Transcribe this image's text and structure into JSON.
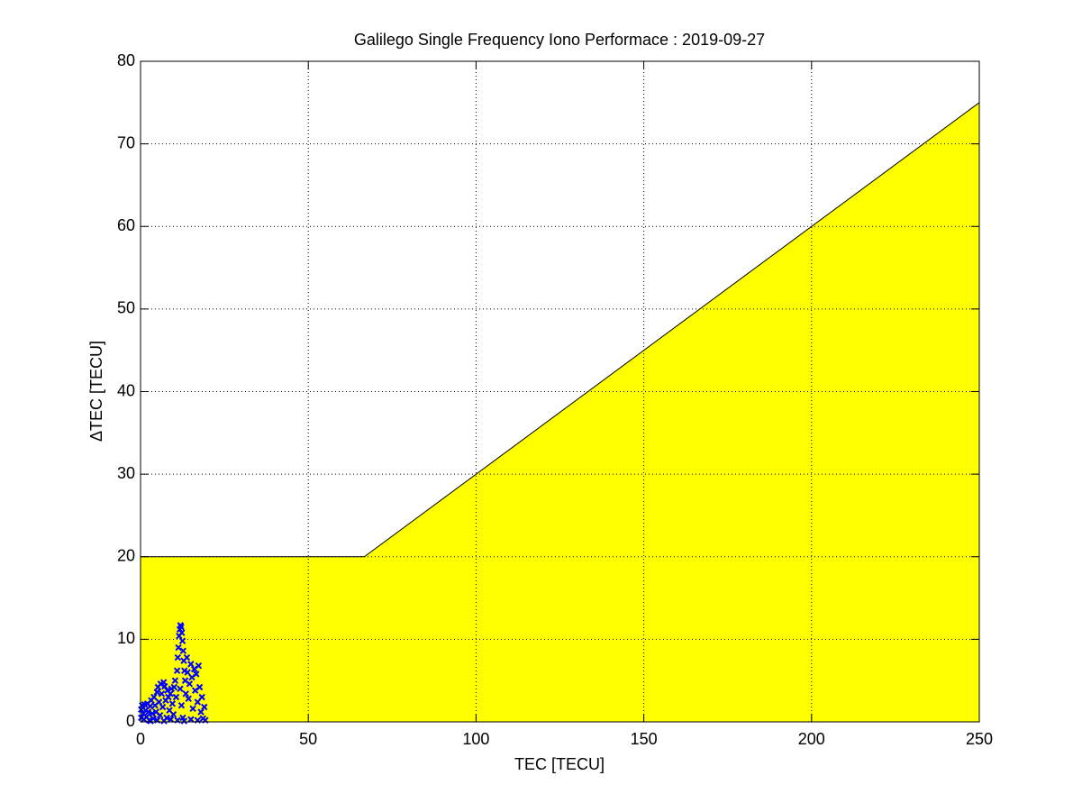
{
  "chart_data": {
    "type": "scatter",
    "title": "Galilego Single Frequency Iono Performace : 2019-09-27",
    "xlabel": "TEC [TECU]",
    "ylabel": "ΔTEC [TECU]",
    "xlim": [
      0,
      250
    ],
    "ylim": [
      0,
      80
    ],
    "xticks": [
      0,
      50,
      100,
      150,
      200,
      250
    ],
    "yticks": [
      0,
      10,
      20,
      30,
      40,
      50,
      60,
      70,
      80
    ],
    "grid": true,
    "area": {
      "color": "#ffff00",
      "x": [
        0,
        66.7,
        250
      ],
      "y": [
        20,
        20,
        75
      ]
    },
    "points": {
      "color": "#0000ff",
      "x": [
        0.2,
        0.2,
        0.5,
        0.8,
        1.0,
        1.2,
        1.5,
        1.8,
        2.0,
        2.3,
        2.6,
        2.9,
        3.2,
        3.5,
        3.8,
        4.0,
        4.3,
        4.6,
        4.9,
        5.2,
        5.5,
        5.8,
        6.0,
        6.3,
        6.6,
        6.9,
        7.2,
        7.5,
        7.8,
        8.0,
        8.3,
        8.6,
        8.9,
        9.2,
        9.5,
        9.8,
        10.0,
        10.3,
        10.6,
        10.9,
        11.1,
        11.3,
        11.5,
        11.7,
        11.9,
        12.1,
        12.3,
        12.5,
        12.7,
        12.9,
        13.1,
        13.3,
        11.8,
        12.2,
        12.6,
        13.5,
        13.8,
        14.0,
        14.3,
        14.6,
        15.0,
        15.3,
        15.6,
        16.0,
        16.3,
        16.6,
        17.0,
        17.3,
        17.6,
        18.0,
        18.3,
        18.6,
        19.0,
        19.3,
        5.0,
        7.0,
        9.0,
        11.0,
        13.0,
        15.0,
        17.0,
        3.0
      ],
      "y": [
        0.5,
        1.5,
        2.0,
        1.0,
        0.3,
        2.1,
        1.4,
        0.6,
        2.2,
        1.2,
        0.2,
        1.9,
        2.6,
        1.0,
        0.4,
        3.0,
        2.0,
        1.2,
        3.6,
        4.2,
        2.4,
        0.8,
        4.6,
        3.4,
        1.8,
        4.8,
        4.3,
        2.6,
        0.5,
        3.8,
        3.0,
        1.4,
        3.4,
        4.0,
        2.2,
        0.9,
        4.2,
        5.0,
        3.0,
        6.2,
        7.8,
        9.0,
        10.4,
        11.2,
        11.7,
        11.5,
        10.8,
        9.8,
        8.6,
        7.4,
        6.2,
        5.0,
        4.0,
        2.0,
        0.5,
        3.4,
        7.8,
        6.0,
        2.8,
        4.6,
        7.0,
        5.4,
        1.6,
        6.4,
        3.8,
        5.8,
        2.4,
        6.8,
        4.2,
        1.2,
        3.0,
        0.4,
        1.8,
        0.2,
        0.2,
        0.1,
        0.3,
        0.2,
        0.1,
        0.3,
        0.2,
        0.1
      ]
    }
  }
}
